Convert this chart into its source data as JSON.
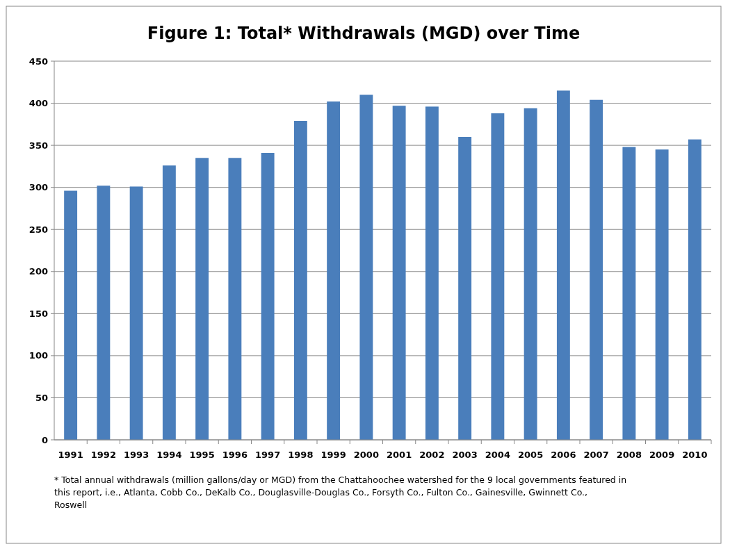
{
  "chart_data": {
    "type": "bar",
    "title": "Figure 1: Total* Withdrawals (MGD) over Time",
    "categories": [
      "1991",
      "1992",
      "1993",
      "1994",
      "1995",
      "1996",
      "1997",
      "1998",
      "1999",
      "2000",
      "2001",
      "2002",
      "2003",
      "2004",
      "2005",
      "2006",
      "2007",
      "2008",
      "2009",
      "2010"
    ],
    "values": [
      296,
      302,
      301,
      326,
      335,
      335,
      341,
      379,
      402,
      410,
      397,
      396,
      360,
      388,
      394,
      415,
      404,
      348,
      345,
      357
    ],
    "color": "#4a7ebb",
    "ylim": [
      0,
      450
    ],
    "yticks": [
      0,
      50,
      100,
      150,
      200,
      250,
      300,
      350,
      400,
      450
    ],
    "grid": "y",
    "annotations": [
      "* Total annual withdrawals (million gallons/day or MGD) from the Chattahoochee watershed for the 9 local governments featured in  this report, i.e., Atlanta, Cobb Co., DeKalb Co., Douglasville-Douglas Co., Forsyth Co., Fulton Co., Gainesville, Gwinnett Co., Roswell"
    ]
  }
}
